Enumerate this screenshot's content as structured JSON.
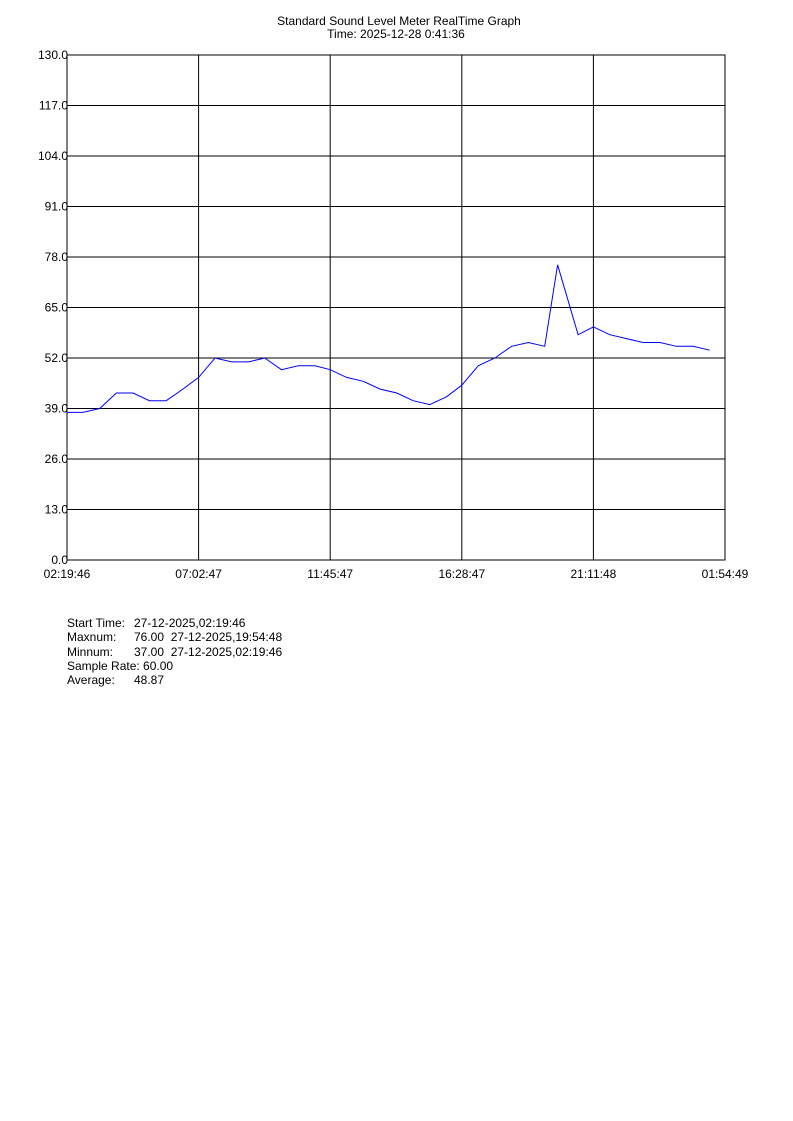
{
  "chart_data": {
    "type": "line",
    "title": "Standard Sound Level Meter RealTime Graph",
    "subtitle": "Time: 2025-12-28  0:41:36",
    "xlabel": "",
    "ylabel": "",
    "ylim": [
      0,
      130
    ],
    "y_ticks": [
      "0.0",
      "13.0",
      "26.0",
      "39.0",
      "52.0",
      "65.0",
      "78.0",
      "91.0",
      "104.0",
      "117.0",
      "130.0"
    ],
    "x_ticks": [
      "02:19:46",
      "07:02:47",
      "11:45:47",
      "16:28:47",
      "21:11:48",
      "01:54:49"
    ],
    "grid": true,
    "line_color": "#0000ff",
    "series": [
      {
        "x": [
          "02:19:46",
          "02:54",
          "03:30",
          "04:06",
          "04:42",
          "05:17",
          "05:53",
          "06:29",
          "07:02:47",
          "07:38",
          "08:14",
          "08:50",
          "09:25",
          "10:01",
          "10:37",
          "11:13",
          "11:45:47",
          "12:21",
          "12:57",
          "13:33",
          "14:09",
          "14:44",
          "15:20",
          "15:56",
          "16:28:47",
          "17:04",
          "17:40",
          "18:16",
          "18:52",
          "19:27",
          "19:54:48",
          "20:39",
          "21:11:48",
          "21:47",
          "22:23",
          "22:59",
          "23:35",
          "00:10",
          "00:46",
          "01:22"
        ],
        "values": [
          38,
          38,
          39,
          43,
          43,
          41,
          41,
          44,
          47,
          52,
          51,
          51,
          52,
          49,
          50,
          50,
          49,
          47,
          46,
          44,
          43,
          41,
          40,
          42,
          45,
          50,
          52,
          55,
          56,
          55,
          76,
          58,
          60,
          58,
          57,
          56,
          56,
          55,
          55,
          54
        ]
      }
    ]
  },
  "stats": {
    "start_time_label": "Start Time:",
    "start_time_value": "27-12-2025,02:19:46",
    "max_label": "Maxnum:",
    "max_value": "76.00  27-12-2025,19:54:48",
    "min_label": "Minnum:",
    "min_value": "37.00  27-12-2025,02:19:46",
    "sample_rate_label": "Sample Rate:",
    "sample_rate_value": "60.00",
    "average_label": "Average:",
    "average_value": "48.87"
  }
}
